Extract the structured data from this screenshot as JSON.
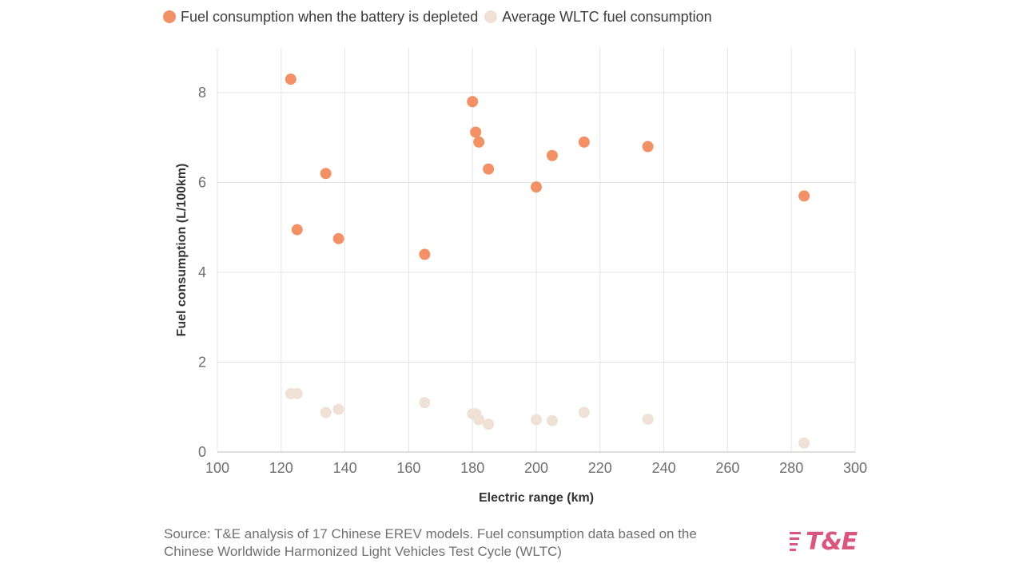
{
  "legend": [
    {
      "label": "Fuel consumption when the battery is depleted",
      "color": "#f29066"
    },
    {
      "label": "Average WLTC fuel consumption",
      "color": "#efe1d5"
    }
  ],
  "chart_data": {
    "type": "scatter",
    "xlabel": "Electric range (km)",
    "ylabel": "Fuel consumption (L/100km)",
    "xlim": [
      100,
      300
    ],
    "ylim": [
      0,
      9
    ],
    "xticks": [
      100,
      120,
      140,
      160,
      180,
      200,
      220,
      240,
      260,
      280,
      300
    ],
    "yticks": [
      0,
      2,
      4,
      6,
      8
    ],
    "grid": true,
    "legend_position": "top-left",
    "series": [
      {
        "name": "Fuel consumption when the battery is depleted",
        "color": "#f29066",
        "points": [
          {
            "x": 123,
            "y": 8.3
          },
          {
            "x": 125,
            "y": 4.95
          },
          {
            "x": 134,
            "y": 6.2
          },
          {
            "x": 138,
            "y": 4.75
          },
          {
            "x": 165,
            "y": 4.4
          },
          {
            "x": 180,
            "y": 7.8
          },
          {
            "x": 181,
            "y": 7.12
          },
          {
            "x": 182,
            "y": 6.9
          },
          {
            "x": 185,
            "y": 6.3
          },
          {
            "x": 200,
            "y": 5.9
          },
          {
            "x": 205,
            "y": 6.6
          },
          {
            "x": 215,
            "y": 6.9
          },
          {
            "x": 235,
            "y": 6.8
          },
          {
            "x": 284,
            "y": 5.7
          }
        ]
      },
      {
        "name": "Average WLTC fuel consumption",
        "color": "#efe1d5",
        "points": [
          {
            "x": 123,
            "y": 1.3
          },
          {
            "x": 125,
            "y": 1.3
          },
          {
            "x": 134,
            "y": 0.88
          },
          {
            "x": 138,
            "y": 0.95
          },
          {
            "x": 165,
            "y": 1.1
          },
          {
            "x": 180,
            "y": 0.85
          },
          {
            "x": 181,
            "y": 0.85
          },
          {
            "x": 182,
            "y": 0.72
          },
          {
            "x": 185,
            "y": 0.62
          },
          {
            "x": 200,
            "y": 0.72
          },
          {
            "x": 205,
            "y": 0.7
          },
          {
            "x": 215,
            "y": 0.88
          },
          {
            "x": 235,
            "y": 0.73
          },
          {
            "x": 284,
            "y": 0.2
          }
        ]
      }
    ]
  },
  "footer": {
    "source_line1": "Source: T&E analysis of 17 Chinese EREV models. Fuel consumption data based on the",
    "source_line2": "Chinese Worldwide Harmonized Light Vehicles Test Cycle (WLTC)"
  },
  "logo": {
    "text": "T&E",
    "color": "#d8577e"
  }
}
